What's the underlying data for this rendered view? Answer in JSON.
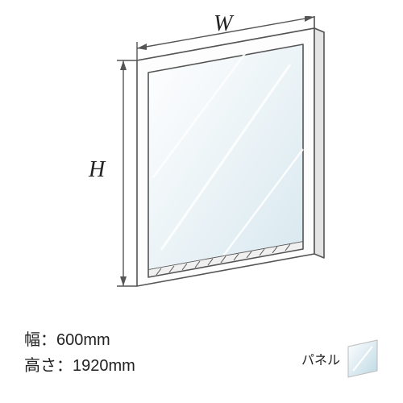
{
  "diagram": {
    "type": "isometric-panel",
    "stroke_color": "#555555",
    "stroke_width": 1.6,
    "glass_gradient_from": "#ffffff",
    "glass_gradient_to": "#d8e8ef",
    "reflection_color": "#ffffff",
    "w_label": "W",
    "h_label": "H",
    "w_label_fontsize": 28,
    "h_label_fontsize": 28,
    "arrow_stroke": "#555555",
    "arrow_width": 1.4,
    "tick_len": 10
  },
  "specs": {
    "width_label": "幅：600mm",
    "height_label": "高さ：1920mm",
    "fontsize": 20
  },
  "legend": {
    "label": "パネル",
    "fontsize": 16,
    "swatch_w": 40,
    "swatch_h": 50,
    "swatch_gradient_from": "#ffffff",
    "swatch_gradient_to": "#bcd8e4",
    "swatch_border": "#bbbbbb"
  }
}
